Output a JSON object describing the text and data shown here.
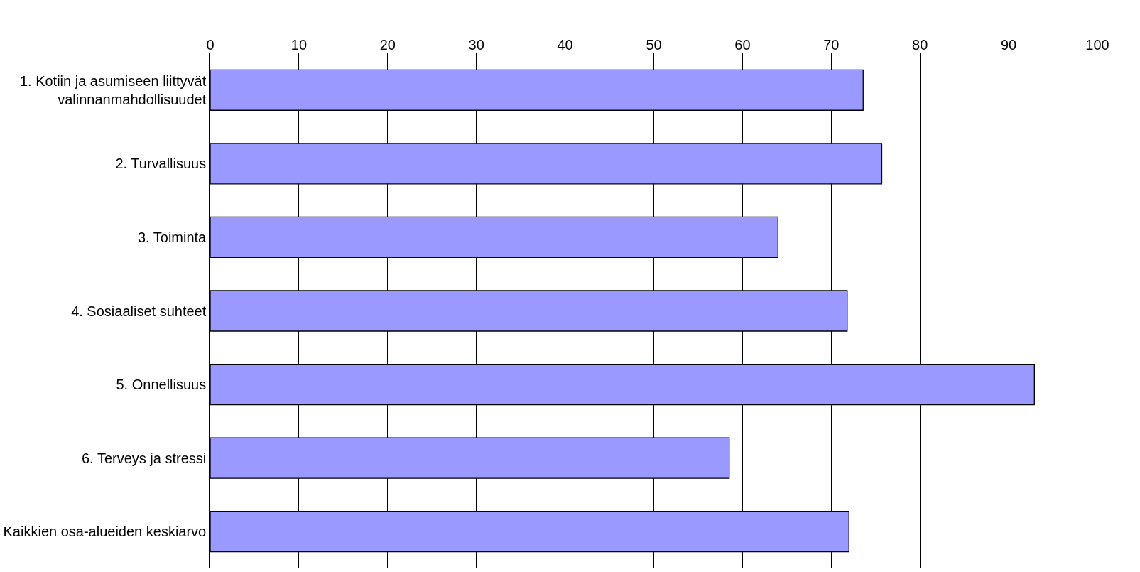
{
  "chart_data": {
    "type": "bar",
    "orientation": "horizontal",
    "categories": [
      "1. Kotiin ja asumiseen liittyvät\nvalinnanmahdollisuudet",
      "2. Turvallisuus",
      "3. Toiminta",
      "4. Sosiaaliset suhteet",
      "5. Onnellisuus",
      "6. Terveys ja stressi",
      "Kaikkien osa-alueiden keskiarvo"
    ],
    "values": [
      73.6,
      75.7,
      64.0,
      71.8,
      92.9,
      58.5,
      72.0
    ],
    "color": "#9999ff",
    "xlim": [
      0,
      100
    ],
    "xticks": [
      0,
      10,
      20,
      30,
      40,
      50,
      60,
      70,
      80,
      90,
      100
    ],
    "grid": "x",
    "legend": false
  }
}
